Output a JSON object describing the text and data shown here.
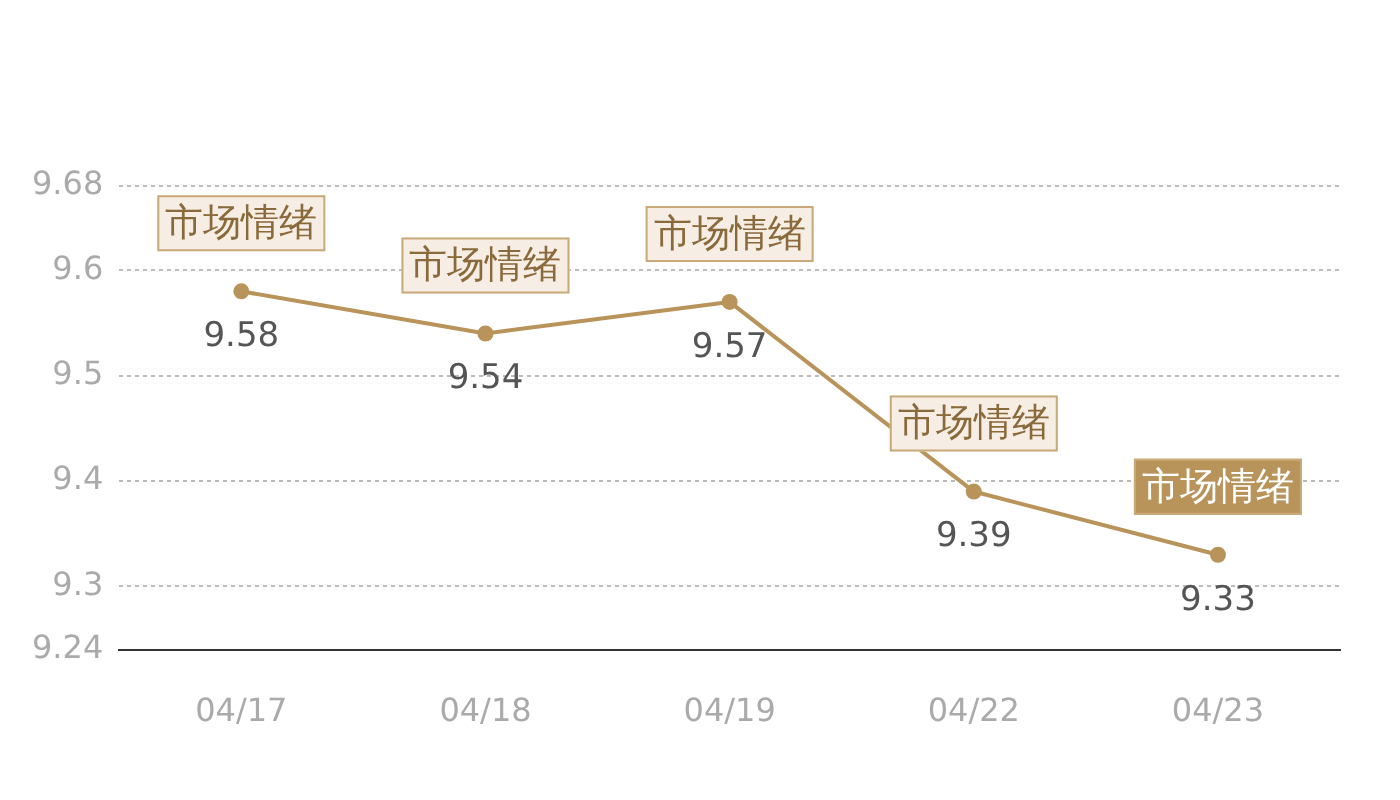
{
  "chart_data": {
    "type": "line",
    "categories": [
      "04/17",
      "04/18",
      "04/19",
      "04/22",
      "04/23"
    ],
    "series": [
      {
        "color": "#b8935a",
        "values": [
          9.58,
          9.54,
          9.57,
          9.39,
          9.33
        ]
      }
    ],
    "ylim": [
      9.24,
      9.68
    ],
    "yticks": [
      9.24,
      9.3,
      9.4,
      9.5,
      9.6,
      9.68
    ],
    "grid": "y",
    "marker": "circle",
    "line_style": "solid",
    "data_labels": true,
    "annotations": [
      {
        "text": "市场情绪",
        "x": "04/17",
        "y": 9.58
      },
      {
        "text": "市场情绪",
        "x": "04/18",
        "y": 9.54
      },
      {
        "text": "市场情绪",
        "x": "04/19",
        "y": 9.57
      },
      {
        "text": "市场情绪",
        "x": "04/22",
        "y": 9.39
      },
      {
        "text": "市场情绪",
        "x": "04/23",
        "y": 9.33
      }
    ]
  }
}
